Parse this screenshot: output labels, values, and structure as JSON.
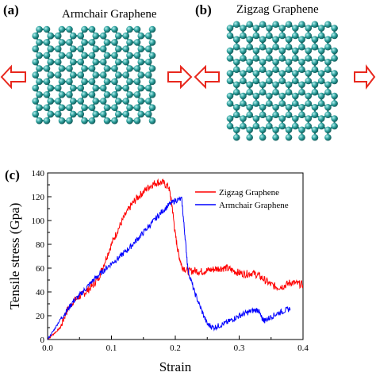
{
  "panels": {
    "a": {
      "label": "(a)",
      "title": "Armchair  Graphene"
    },
    "b": {
      "label": "(b)",
      "title": "Zigzag  Graphene"
    },
    "c": {
      "label": "(c)"
    }
  },
  "colors": {
    "atom": "#2a9d9a",
    "atom_highlight": "#b8f0ee",
    "bond": "#1f7f7c",
    "arrow": "#e8281e",
    "zigzag_series": "#ff0000",
    "armchair_series": "#0000ff"
  },
  "chart_data": {
    "type": "line",
    "xlabel": "Strain",
    "ylabel": "Tensile stress (Gpa)",
    "xlim": [
      0,
      0.4
    ],
    "ylim": [
      0,
      140
    ],
    "xticks": [
      0.0,
      0.1,
      0.2,
      0.3,
      0.4
    ],
    "xtick_labels": [
      "0.0",
      "0.1",
      "0.2",
      "0.3",
      "0.4"
    ],
    "yticks": [
      0,
      20,
      40,
      60,
      80,
      100,
      120,
      140
    ],
    "legend_position": "top-right",
    "series": [
      {
        "name": "Zigzag Graphene",
        "color": "#ff0000",
        "x": [
          0,
          0.01,
          0.02,
          0.03,
          0.04,
          0.05,
          0.06,
          0.07,
          0.08,
          0.09,
          0.1,
          0.11,
          0.12,
          0.13,
          0.14,
          0.15,
          0.16,
          0.17,
          0.18,
          0.19,
          0.195,
          0.2,
          0.205,
          0.21,
          0.22,
          0.23,
          0.24,
          0.25,
          0.26,
          0.27,
          0.28,
          0.29,
          0.3,
          0.31,
          0.32,
          0.33,
          0.34,
          0.35,
          0.36,
          0.37,
          0.38,
          0.39,
          0.4
        ],
        "y": [
          0,
          5,
          10,
          24,
          32,
          36,
          40,
          45,
          52,
          66,
          80,
          92,
          103,
          112,
          119,
          124,
          129,
          132,
          132,
          128,
          112,
          88,
          72,
          62,
          57,
          58,
          57,
          58,
          59,
          60,
          60,
          58,
          56,
          55,
          56,
          54,
          50,
          46,
          44,
          45,
          48,
          47,
          46
        ]
      },
      {
        "name": "Armchair Graphene",
        "color": "#0000ff",
        "x": [
          0,
          0.01,
          0.02,
          0.03,
          0.04,
          0.05,
          0.06,
          0.07,
          0.08,
          0.09,
          0.1,
          0.11,
          0.12,
          0.13,
          0.14,
          0.15,
          0.16,
          0.17,
          0.18,
          0.19,
          0.2,
          0.21,
          0.215,
          0.22,
          0.23,
          0.24,
          0.25,
          0.26,
          0.27,
          0.28,
          0.29,
          0.3,
          0.31,
          0.32,
          0.33,
          0.335,
          0.34,
          0.35,
          0.36,
          0.37,
          0.38
        ],
        "y": [
          0,
          8,
          17,
          24,
          32,
          37,
          43,
          49,
          54,
          59,
          64,
          68,
          73,
          78,
          84,
          90,
          96,
          102,
          108,
          113,
          117,
          118,
          88,
          58,
          40,
          26,
          13,
          10,
          12,
          14,
          17,
          20,
          22,
          24,
          25,
          18,
          16,
          19,
          22,
          24,
          26
        ]
      }
    ]
  }
}
